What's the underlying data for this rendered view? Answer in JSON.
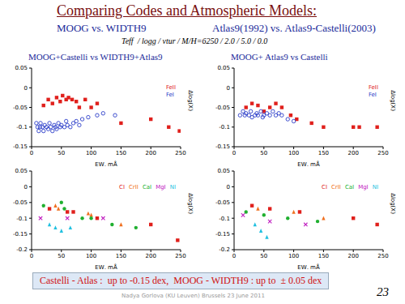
{
  "title": "Comparing Codes and Atmospheric Models:",
  "subtitle_left": "MOOG vs. WIDTH9",
  "subtitle_right": "Atlas9(1992) vs. Atlas9-Castelli(2003)",
  "parameters": "Teff  / logg / vtur / M/H=6250 / 2.0 / 5.0 / 0.0",
  "footer_left": "Castelli - Atlas :  up to -0.15 dex,",
  "footer_right": "MOOG - WIDTH9 : up to  ± 0.05 dex",
  "author": "Nadya Gorlova (KU Leuven) Brussels 23 June 2011",
  "page": 23,
  "chart_data": [
    {
      "type": "scatter",
      "title": "MOOG+Castelli vs WIDTH9+Atlas9",
      "x_label": "EW, mÅ",
      "y_label": "Δlog(X)",
      "xlim": [
        0,
        250
      ],
      "xticks": [
        0,
        50,
        100,
        150,
        200,
        250
      ],
      "ylim": [
        -0.15,
        0.05
      ],
      "yticks": [
        -0.15,
        -0.1,
        -0.05,
        0,
        0.05
      ],
      "legend": "top-right",
      "series": [
        {
          "name": "FeII",
          "color": "#e0201c",
          "marker": "square",
          "x": [
            20,
            28,
            35,
            42,
            48,
            52,
            58,
            62,
            68,
            75,
            80,
            90,
            100,
            110,
            150,
            200,
            230,
            248
          ],
          "values": [
            -0.045,
            -0.03,
            -0.04,
            -0.025,
            -0.035,
            -0.02,
            -0.03,
            -0.025,
            -0.03,
            -0.035,
            -0.05,
            -0.03,
            -0.05,
            -0.04,
            -0.09,
            -0.08,
            -0.1,
            -0.11
          ]
        },
        {
          "name": "FeI",
          "color": "#2a3cc8",
          "marker": "open_circle",
          "x": [
            8,
            10,
            12,
            14,
            15,
            18,
            20,
            22,
            25,
            28,
            30,
            32,
            35,
            38,
            40,
            42,
            45,
            48,
            50,
            55,
            58,
            60,
            65,
            70,
            75,
            80,
            85,
            95,
            110,
            120,
            140
          ],
          "values": [
            -0.09,
            -0.1,
            -0.11,
            -0.1,
            -0.09,
            -0.1,
            -0.11,
            -0.095,
            -0.1,
            -0.105,
            -0.09,
            -0.1,
            -0.11,
            -0.095,
            -0.1,
            -0.105,
            -0.09,
            -0.1,
            -0.095,
            -0.1,
            -0.085,
            -0.095,
            -0.1,
            -0.09,
            -0.085,
            -0.095,
            -0.08,
            -0.075,
            -0.07,
            -0.065,
            -0.07
          ]
        }
      ]
    },
    {
      "type": "scatter",
      "title": "MOOG+ Atlas9 vs Castelli",
      "x_label": "EW, mÅ",
      "y_label": "Δlog(X)",
      "xlim": [
        0,
        250
      ],
      "xticks": [
        0,
        50,
        100,
        150,
        200,
        250
      ],
      "ylim": [
        -0.15,
        0.05
      ],
      "yticks": [
        -0.15,
        -0.1,
        -0.05,
        0,
        0.05
      ],
      "legend": "top-right",
      "series": [
        {
          "name": "FeII",
          "color": "#e0201c",
          "marker": "square",
          "x": [
            20,
            30,
            40,
            50,
            60,
            70,
            80,
            95,
            105,
            130,
            150,
            200,
            210,
            240
          ],
          "values": [
            -0.05,
            -0.04,
            -0.045,
            -0.06,
            -0.05,
            -0.04,
            -0.05,
            -0.07,
            -0.08,
            -0.09,
            -0.1,
            -0.1,
            -0.1,
            -0.1
          ]
        },
        {
          "name": "FeI",
          "color": "#2a3cc8",
          "marker": "open_circle",
          "x": [
            10,
            15,
            18,
            20,
            25,
            28,
            30,
            35,
            38,
            40,
            45,
            48,
            50,
            55,
            60,
            65,
            70,
            75,
            80,
            90,
            100
          ],
          "values": [
            -0.07,
            -0.06,
            -0.07,
            -0.065,
            -0.07,
            -0.06,
            -0.075,
            -0.07,
            -0.065,
            -0.07,
            -0.06,
            -0.075,
            -0.07,
            -0.065,
            -0.07,
            -0.06,
            -0.07,
            -0.065,
            -0.07,
            -0.08,
            -0.085
          ]
        }
      ]
    },
    {
      "type": "scatter",
      "x_label": "EW, mÅ",
      "y_label": "Δlog(X)",
      "xlim": [
        0,
        250
      ],
      "xticks": [
        0,
        50,
        100,
        150,
        200,
        250
      ],
      "ylim": [
        -0.2,
        0.05
      ],
      "yticks": [
        -0.2,
        -0.15,
        -0.1,
        -0.05,
        0,
        0.05
      ],
      "legend": "top-right",
      "series": [
        {
          "name": "CI",
          "color": "#e0201c",
          "marker": "square",
          "x": [
            30,
            60,
            70,
            110,
            200,
            245
          ],
          "values": [
            -0.07,
            -0.08,
            -0.08,
            -0.1,
            -0.12,
            -0.17
          ]
        },
        {
          "name": "CrII",
          "color": "#f07020",
          "marker": "triangle",
          "x": [
            40,
            45,
            95,
            100,
            150
          ],
          "values": [
            -0.06,
            -0.07,
            -0.085,
            -0.09,
            -0.12
          ]
        },
        {
          "name": "CaI",
          "color": "#20b030",
          "marker": "circle",
          "x": [
            20,
            50,
            55,
            85,
            100,
            135,
            175
          ],
          "values": [
            -0.06,
            -0.05,
            -0.07,
            -0.1,
            -0.1,
            -0.12,
            -0.13
          ]
        },
        {
          "name": "MgI",
          "color": "#c020c0",
          "marker": "cross",
          "x": [
            15,
            60,
            120
          ],
          "values": [
            -0.1,
            -0.1,
            -0.1
          ]
        },
        {
          "name": "NI",
          "color": "#20c0e0",
          "marker": "triangle",
          "x": [
            30,
            40,
            50,
            65
          ],
          "values": [
            -0.12,
            -0.13,
            -0.14,
            -0.13
          ]
        }
      ]
    },
    {
      "type": "scatter",
      "x_label": "EW, mÅ",
      "y_label": "Δlog(X)",
      "xlim": [
        0,
        250
      ],
      "xticks": [
        0,
        50,
        100,
        150,
        200,
        250
      ],
      "ylim": [
        -0.2,
        0.05
      ],
      "yticks": [
        -0.2,
        -0.15,
        -0.1,
        -0.05,
        0,
        0.05
      ],
      "legend": "top-right",
      "series": [
        {
          "name": "CI",
          "color": "#e0201c",
          "marker": "square",
          "x": [
            30,
            60,
            110,
            200,
            240
          ],
          "values": [
            -0.06,
            -0.07,
            -0.08,
            -0.1,
            -0.12
          ]
        },
        {
          "name": "CrII",
          "color": "#f07020",
          "marker": "triangle",
          "x": [
            40,
            100,
            150
          ],
          "values": [
            -0.07,
            -0.08,
            -0.1
          ]
        },
        {
          "name": "CaI",
          "color": "#20b030",
          "marker": "circle",
          "x": [
            20,
            50,
            90,
            140
          ],
          "values": [
            -0.08,
            -0.09,
            -0.1,
            -0.11
          ]
        },
        {
          "name": "MgI",
          "color": "#c020c0",
          "marker": "cross",
          "x": [
            15,
            60,
            120
          ],
          "values": [
            -0.09,
            -0.11,
            -0.12
          ]
        },
        {
          "name": "NI",
          "color": "#20c0e0",
          "marker": "triangle",
          "x": [
            35,
            45,
            55
          ],
          "values": [
            -0.12,
            -0.14,
            -0.16
          ]
        }
      ]
    }
  ]
}
